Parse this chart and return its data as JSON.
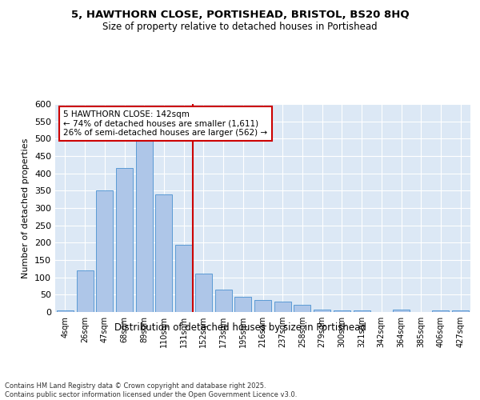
{
  "title": "5, HAWTHORN CLOSE, PORTISHEAD, BRISTOL, BS20 8HQ",
  "subtitle": "Size of property relative to detached houses in Portishead",
  "xlabel": "Distribution of detached houses by size in Portishead",
  "ylabel": "Number of detached properties",
  "categories": [
    "4sqm",
    "26sqm",
    "47sqm",
    "68sqm",
    "89sqm",
    "110sqm",
    "131sqm",
    "152sqm",
    "173sqm",
    "195sqm",
    "216sqm",
    "237sqm",
    "258sqm",
    "279sqm",
    "300sqm",
    "321sqm",
    "342sqm",
    "364sqm",
    "385sqm",
    "406sqm",
    "427sqm"
  ],
  "values": [
    5,
    120,
    350,
    415,
    510,
    340,
    195,
    110,
    65,
    45,
    35,
    30,
    20,
    8,
    4,
    4,
    0,
    8,
    0,
    4,
    4
  ],
  "bar_color": "#aec6e8",
  "bar_edge_color": "#5b9bd5",
  "vline_color": "#cc0000",
  "annotation_text": "5 HAWTHORN CLOSE: 142sqm\n← 74% of detached houses are smaller (1,611)\n26% of semi-detached houses are larger (562) →",
  "annotation_box_color": "#ffffff",
  "annotation_box_edge": "#cc0000",
  "footer": "Contains HM Land Registry data © Crown copyright and database right 2025.\nContains public sector information licensed under the Open Government Licence v3.0.",
  "ylim": [
    0,
    600
  ],
  "yticks": [
    0,
    50,
    100,
    150,
    200,
    250,
    300,
    350,
    400,
    450,
    500,
    550,
    600
  ],
  "bg_color": "#dce8f5",
  "fig_bg_color": "#ffffff",
  "vline_bar_index": 6.45
}
